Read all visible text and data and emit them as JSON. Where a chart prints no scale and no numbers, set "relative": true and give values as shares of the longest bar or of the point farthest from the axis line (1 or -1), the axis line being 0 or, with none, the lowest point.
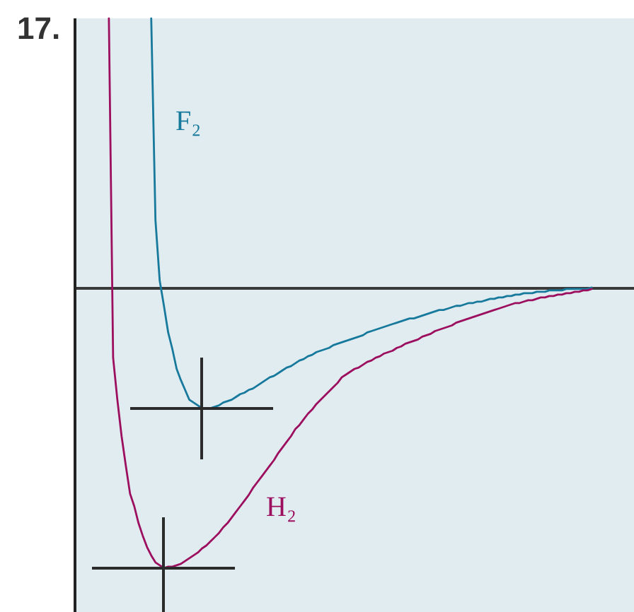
{
  "chart_data": {
    "type": "line",
    "title": "17.",
    "relative": true,
    "categories": [
      null,
      null,
      null,
      null,
      null,
      null,
      null,
      null,
      null,
      null,
      null,
      null,
      null,
      null,
      null,
      null,
      null,
      null,
      null,
      null,
      null,
      null,
      null,
      null,
      null,
      null,
      null,
      null,
      null,
      null,
      null,
      null,
      null,
      null,
      null,
      null,
      null,
      null,
      null,
      null,
      null,
      null,
      null,
      null,
      null,
      null,
      null,
      null,
      null,
      null,
      null,
      null,
      null,
      null,
      null,
      null,
      null,
      null,
      null,
      null,
      null,
      null,
      null,
      null,
      null,
      null,
      null,
      null,
      null,
      null,
      null,
      null,
      null,
      null,
      null,
      null,
      null,
      null,
      null,
      null,
      null,
      null,
      null,
      null,
      null,
      null,
      null,
      null,
      null,
      null,
      null,
      null,
      null,
      null,
      null,
      null,
      null,
      null,
      null,
      null,
      null,
      null,
      null,
      null,
      null,
      null,
      null,
      null,
      null,
      null,
      null,
      null,
      null,
      null,
      null,
      null,
      null,
      null,
      null,
      null,
      null,
      null,
      null,
      null,
      null,
      null,
      null,
      null,
      null,
      null,
      null,
      null,
      null
    ],
    "series": [
      {
        "name": "F₂",
        "color": "#17799b",
        "values": [
          null,
          null,
          null,
          null,
          null,
          null,
          null,
          null,
          null,
          null,
          null,
          null,
          null,
          null,
          null,
          null,
          null,
          null,
          0.96,
          0.24,
          0.025,
          -0.065,
          -0.16,
          -0.22,
          -0.29,
          -0.33,
          -0.365,
          -0.4,
          -0.41,
          -0.42,
          -0.43,
          -0.43,
          -0.43,
          -0.425,
          -0.42,
          -0.41,
          -0.405,
          -0.4,
          -0.39,
          -0.38,
          -0.375,
          -0.365,
          -0.36,
          -0.35,
          -0.34,
          -0.33,
          -0.32,
          -0.315,
          -0.305,
          -0.295,
          -0.285,
          -0.28,
          -0.27,
          -0.26,
          -0.255,
          -0.245,
          -0.24,
          -0.23,
          -0.225,
          -0.22,
          -0.215,
          -0.205,
          -0.2,
          -0.195,
          -0.19,
          -0.185,
          -0.18,
          -0.175,
          -0.17,
          -0.16,
          -0.155,
          -0.15,
          -0.145,
          -0.14,
          -0.135,
          -0.13,
          -0.125,
          -0.12,
          -0.115,
          -0.11,
          -0.11,
          -0.105,
          -0.1,
          -0.095,
          -0.09,
          -0.085,
          -0.08,
          -0.08,
          -0.075,
          -0.07,
          -0.065,
          -0.065,
          -0.06,
          -0.055,
          -0.055,
          -0.05,
          -0.05,
          -0.045,
          -0.04,
          -0.04,
          -0.035,
          -0.035,
          -0.03,
          -0.03,
          -0.025,
          -0.025,
          -0.02,
          -0.02,
          -0.02,
          -0.015,
          -0.015,
          -0.015,
          -0.01,
          -0.01,
          -0.01,
          -0.01,
          -0.005,
          -0.005,
          -0.005,
          -0.005,
          -0.005,
          -0.005,
          0,
          null,
          null,
          null,
          null,
          null,
          null,
          null,
          null,
          null,
          null
        ]
      },
      {
        "name": "H₂",
        "color": "#9c0f5f",
        "values": [
          null,
          null,
          null,
          null,
          null,
          null,
          null,
          null,
          0.96,
          -0.25,
          -0.4,
          -0.53,
          -0.635,
          -0.735,
          -0.78,
          -0.84,
          -0.885,
          -0.925,
          -0.955,
          -0.98,
          -0.99,
          -1,
          -0.995,
          -0.995,
          -0.99,
          -0.985,
          -0.975,
          -0.965,
          -0.955,
          -0.945,
          -0.93,
          -0.92,
          -0.905,
          -0.89,
          -0.875,
          -0.855,
          -0.84,
          -0.82,
          -0.8,
          -0.78,
          -0.76,
          -0.74,
          -0.715,
          -0.695,
          -0.675,
          -0.655,
          -0.635,
          -0.615,
          -0.59,
          -0.57,
          -0.55,
          -0.53,
          -0.505,
          -0.49,
          -0.47,
          -0.45,
          -0.435,
          -0.415,
          -0.4,
          -0.385,
          -0.37,
          -0.355,
          -0.34,
          -0.32,
          -0.31,
          -0.3,
          -0.29,
          -0.285,
          -0.275,
          -0.265,
          -0.26,
          -0.25,
          -0.245,
          -0.235,
          -0.23,
          -0.225,
          -0.215,
          -0.21,
          -0.2,
          -0.195,
          -0.19,
          -0.185,
          -0.175,
          -0.17,
          -0.165,
          -0.155,
          -0.15,
          -0.145,
          -0.14,
          -0.135,
          -0.125,
          -0.12,
          -0.115,
          -0.11,
          -0.105,
          -0.1,
          -0.095,
          -0.09,
          -0.085,
          -0.08,
          -0.075,
          -0.07,
          -0.065,
          -0.06,
          -0.055,
          -0.055,
          -0.05,
          -0.045,
          -0.045,
          -0.04,
          -0.035,
          -0.035,
          -0.03,
          -0.03,
          -0.025,
          -0.025,
          -0.02,
          -0.02,
          -0.015,
          -0.015,
          -0.01,
          -0.01,
          -0.005,
          null,
          null,
          null,
          null,
          null,
          null,
          null,
          null,
          null,
          null
        ]
      }
    ]
  }
}
